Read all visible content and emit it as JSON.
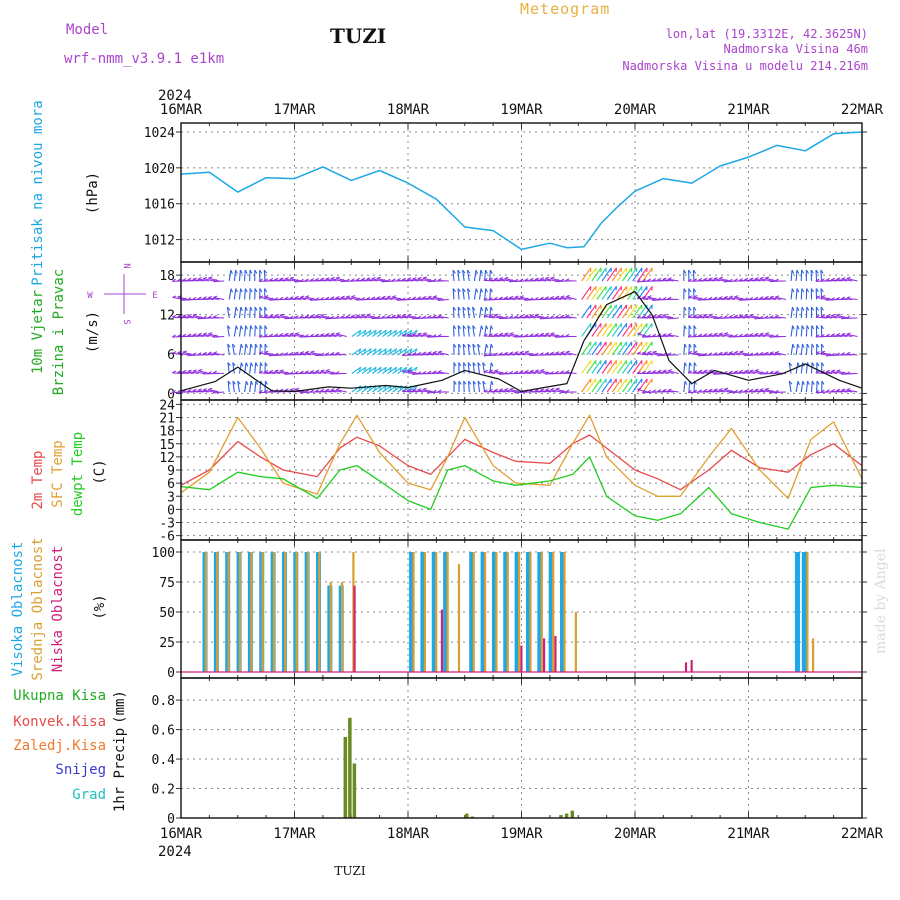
{
  "header": {
    "model_label": "Model",
    "model_name": "wrf-nmm_v3.9.1 e1km",
    "station": "TUZI",
    "title": "Meteogram",
    "lonlat": "lon,lat (19.3312E, 42.3625N)",
    "elevation": "Nadmorska Visina 46m",
    "model_elevation": "Nadmorska Visina u modelu 214.216m",
    "footer_station": "TUZI",
    "watermark": "made by Angel"
  },
  "time_axis": {
    "year": "2024",
    "labels": [
      "16MAR",
      "17MAR",
      "18MAR",
      "19MAR",
      "20MAR",
      "21MAR",
      "22MAR"
    ]
  },
  "colors": {
    "pressure": "#1ea7e6",
    "wind_label": "#22aa22",
    "wind_dir": "#aa44cc",
    "t2m": "#e84a4a",
    "sfc": "#e0a030",
    "dew": "#22cc22",
    "cloud_high": "#1ea7e6",
    "cloud_mid": "#d9a030",
    "cloud_low": "#d0207a",
    "total_precip": "#22aa22",
    "conv_precip": "#e84a4a",
    "frozen": "#f07a2a",
    "snow": "#3a3ad0",
    "hail": "#20c0c0"
  },
  "chart_data": [
    {
      "type": "line",
      "name": "pressure",
      "ylabel": "Pritisak na nivou mora",
      "unit": "(hPa)",
      "yticks": [
        1012,
        1016,
        1020,
        1024
      ],
      "ylim": [
        1009.5,
        1025
      ],
      "x": [
        0,
        0.25,
        0.5,
        0.75,
        1.0,
        1.25,
        1.5,
        1.75,
        2.0,
        2.25,
        2.5,
        2.75,
        3.0,
        3.25,
        3.4,
        3.55,
        3.7,
        3.85,
        4.0,
        4.25,
        4.5,
        4.75,
        5.0,
        5.25,
        5.5,
        5.75,
        6.0
      ],
      "values": [
        1019.3,
        1019.5,
        1017.3,
        1018.9,
        1018.8,
        1020.1,
        1018.6,
        1019.7,
        1018.3,
        1016.5,
        1013.4,
        1013.0,
        1010.9,
        1011.6,
        1011.1,
        1011.2,
        1013.8,
        1015.7,
        1017.4,
        1018.8,
        1018.3,
        1020.2,
        1021.2,
        1022.5,
        1021.9,
        1023.8,
        1024.0
      ]
    },
    {
      "type": "line",
      "name": "wind",
      "ylabel": "10m Vjetar",
      "ylabel2": "Brzina i Pravac",
      "unit": "(m/s)",
      "compass": [
        "N",
        "S",
        "W",
        "E"
      ],
      "yticks": [
        0,
        6,
        12,
        18
      ],
      "ylim": [
        -1,
        20
      ],
      "x": [
        0,
        0.3,
        0.5,
        0.65,
        0.8,
        1.0,
        1.3,
        1.5,
        1.8,
        2.0,
        2.3,
        2.5,
        2.8,
        3.0,
        3.2,
        3.4,
        3.55,
        3.75,
        4.0,
        4.15,
        4.3,
        4.5,
        4.7,
        5.0,
        5.3,
        5.5,
        5.8,
        6.0
      ],
      "values": [
        0.4,
        1.8,
        4.0,
        2.2,
        0.4,
        0.3,
        1.0,
        0.8,
        1.2,
        0.9,
        2.0,
        3.5,
        2.2,
        0.3,
        0.9,
        1.5,
        8.0,
        13.5,
        15.5,
        12.0,
        5.0,
        1.5,
        3.5,
        2.0,
        3.0,
        4.5,
        2.0,
        0.8
      ]
    },
    {
      "type": "line",
      "name": "temperature",
      "ylabel": "2m Temp",
      "ylabel2": "SFC Temp",
      "ylabel3": "dewpt Temp",
      "unit": "(C)",
      "yticks": [
        -6,
        -3,
        0,
        3,
        6,
        9,
        12,
        15,
        18,
        21,
        24
      ],
      "ylim": [
        -7,
        25
      ],
      "x": [
        0,
        0.25,
        0.5,
        0.7,
        0.9,
        1.2,
        1.4,
        1.55,
        1.75,
        2.0,
        2.2,
        2.35,
        2.5,
        2.75,
        2.95,
        3.25,
        3.45,
        3.6,
        3.75,
        4.0,
        4.2,
        4.4,
        4.65,
        4.85,
        5.1,
        5.35,
        5.55,
        5.75,
        6.0
      ],
      "series": [
        {
          "name": "t2m",
          "values": [
            5.5,
            9.0,
            15.5,
            12.0,
            9.0,
            7.5,
            14.0,
            16.5,
            14.5,
            10.0,
            8.0,
            12.0,
            16.0,
            13.0,
            11.0,
            10.5,
            15.0,
            17.0,
            14.0,
            9.0,
            7.0,
            4.5,
            9.0,
            13.5,
            9.5,
            8.5,
            12.5,
            15.0,
            10.0
          ]
        },
        {
          "name": "sfc",
          "values": [
            3.8,
            8.5,
            21.0,
            14.0,
            6.0,
            3.5,
            15.0,
            21.5,
            13.0,
            6.0,
            4.5,
            12.0,
            21.0,
            10.0,
            6.0,
            5.5,
            15.0,
            21.5,
            12.0,
            5.5,
            3.0,
            3.0,
            12.0,
            18.5,
            9.0,
            2.5,
            16.0,
            20.0,
            7.0
          ]
        },
        {
          "name": "dew",
          "values": [
            5.2,
            4.5,
            8.5,
            7.5,
            7.0,
            2.5,
            9.0,
            10.0,
            6.5,
            2.0,
            0.0,
            9.0,
            10.0,
            6.5,
            5.5,
            6.5,
            8.0,
            12.0,
            3.0,
            -1.5,
            -2.5,
            -1.0,
            5.0,
            -1.0,
            -3.0,
            -4.5,
            5.0,
            5.5,
            5.0
          ]
        }
      ]
    },
    {
      "type": "bar",
      "name": "clouds",
      "ylabel": "Visoka Oblacnost",
      "ylabel2": "Srednja Oblacnost",
      "ylabel3": "Niska Oblacnost",
      "unit": "(%)",
      "yticks": [
        0,
        25,
        50,
        75,
        100
      ],
      "ylim": [
        -5,
        110
      ],
      "groups": [
        {
          "series": "high",
          "x": [
            0.2,
            0.3,
            0.4,
            0.5,
            0.6,
            0.7,
            0.8,
            0.9,
            1.0,
            1.1,
            1.2,
            1.3,
            1.4
          ],
          "values": [
            100,
            100,
            100,
            100,
            100,
            100,
            100,
            100,
            100,
            100,
            100,
            72,
            72
          ]
        },
        {
          "series": "mid",
          "x": [
            0.22,
            0.32,
            0.42,
            0.52,
            0.62,
            0.72,
            0.82,
            0.92,
            1.02,
            1.12,
            1.22,
            1.32,
            1.42,
            1.52
          ],
          "values": [
            100,
            100,
            100,
            100,
            100,
            100,
            100,
            100,
            100,
            100,
            100,
            75,
            75,
            100
          ]
        },
        {
          "series": "high",
          "x": [
            2.02,
            2.12,
            2.22,
            2.32,
            3.05,
            2.55,
            2.65,
            2.75,
            2.85,
            2.95,
            3.15,
            3.25,
            3.35
          ],
          "values": [
            100,
            100,
            100,
            100,
            100,
            100,
            100,
            100,
            100,
            100,
            100,
            100,
            100
          ]
        },
        {
          "series": "mid",
          "x": [
            2.05,
            2.15,
            2.25,
            2.35,
            2.45,
            2.58,
            2.68,
            2.78,
            2.88,
            2.98,
            3.08,
            3.18,
            3.28,
            3.38,
            3.48
          ],
          "values": [
            100,
            100,
            100,
            100,
            90,
            100,
            100,
            100,
            100,
            100,
            100,
            100,
            100,
            100,
            50
          ]
        },
        {
          "series": "high",
          "x": [
            5.42,
            5.48
          ],
          "values": [
            100,
            100
          ]
        },
        {
          "series": "mid",
          "x": [
            5.52,
            5.57
          ],
          "values": [
            100,
            28
          ]
        },
        {
          "series": "low",
          "x": [
            1.53,
            2.3,
            3.0,
            3.2,
            3.3,
            4.45,
            4.5
          ],
          "values": [
            72,
            52,
            22,
            28,
            30,
            8,
            10
          ]
        }
      ]
    },
    {
      "type": "bar",
      "name": "precipitation",
      "legend": [
        "Ukupna Kisa",
        "Konvek.Kisa",
        "Zaledj.Kisa",
        "Snijeg",
        "Grad"
      ],
      "ylabel": "1hr Precip",
      "unit": "(mm)",
      "yticks": [
        0,
        0.2,
        0.4,
        0.6,
        0.8
      ],
      "ylim": [
        0,
        0.95
      ],
      "x": [
        1.45,
        1.49,
        1.53,
        2.52,
        2.57,
        3.35,
        3.4,
        3.45
      ],
      "values": [
        0.55,
        0.68,
        0.37,
        0.03,
        0.01,
        0.02,
        0.03,
        0.05
      ]
    }
  ]
}
